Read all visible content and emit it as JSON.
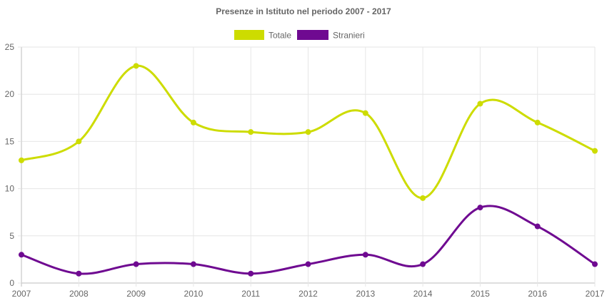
{
  "chart_data": {
    "type": "line",
    "title": "Presenze in Istituto nel periodo 2007 - 2017",
    "categories": [
      "2007",
      "2008",
      "2009",
      "2010",
      "2011",
      "2012",
      "2013",
      "2014",
      "2015",
      "2016",
      "2017"
    ],
    "series": [
      {
        "name": "Totale",
        "color": "#cddc00",
        "values": [
          13,
          15,
          23,
          17,
          16,
          16,
          18,
          9,
          19,
          17,
          14
        ]
      },
      {
        "name": "Stranieri",
        "color": "#6f0a91",
        "values": [
          3,
          1,
          2,
          2,
          1,
          2,
          3,
          2,
          8,
          6,
          2
        ]
      }
    ],
    "ylim": [
      0,
      25
    ],
    "yticks": [
      "0",
      "5",
      "10",
      "15",
      "20",
      "25"
    ],
    "grid": true,
    "legend_position": "top-center",
    "smooth": true
  }
}
